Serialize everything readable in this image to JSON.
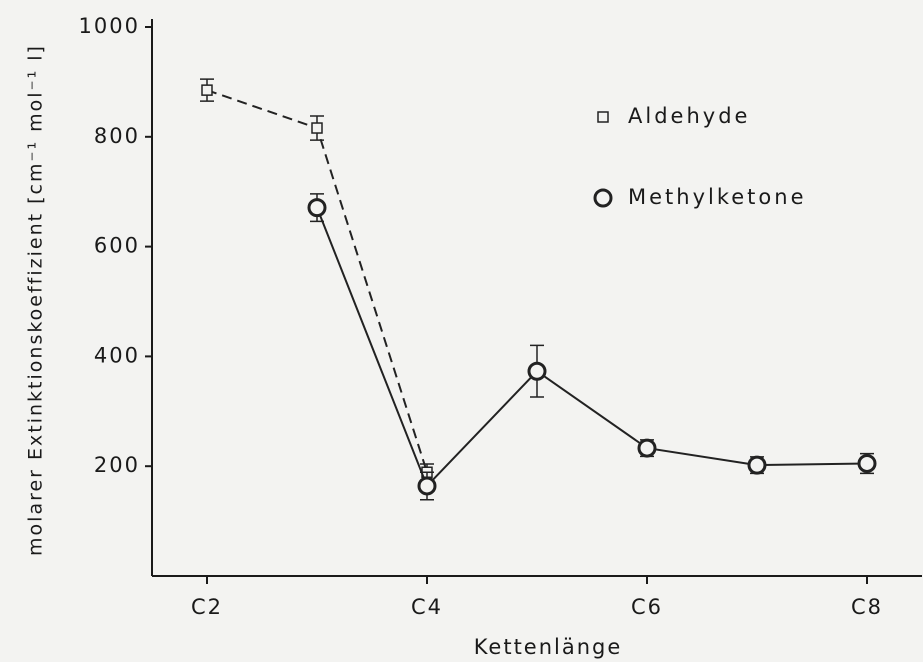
{
  "chart_data": {
    "type": "line",
    "xlabel": "Kettenlänge",
    "ylabel": "molarer Extinktionskoeffizient  [cm⁻¹ mol⁻¹ l]",
    "xlim": [
      1.5,
      8.5
    ],
    "ylim": [
      0,
      1000
    ],
    "xticks": [
      {
        "value": 2,
        "label": "C2"
      },
      {
        "value": 4,
        "label": "C4"
      },
      {
        "value": 6,
        "label": "C6"
      },
      {
        "value": 8,
        "label": "C8"
      }
    ],
    "yticks": [
      200,
      400,
      600,
      800,
      1000
    ],
    "grid": false,
    "series": [
      {
        "name": "Aldehyde",
        "color": "#222222",
        "linestyle": "dashed",
        "marker": "square",
        "x": [
          2,
          3,
          4
        ],
        "values": [
          885,
          816,
          189
        ],
        "errors": [
          20,
          22,
          15
        ]
      },
      {
        "name": "Methylketone",
        "color": "#222222",
        "linestyle": "solid",
        "marker": "circle",
        "x": [
          3,
          4,
          5,
          6,
          7,
          8
        ],
        "values": [
          671,
          164,
          373,
          233,
          202,
          205
        ],
        "errors": [
          25,
          25,
          47,
          15,
          15,
          18
        ]
      }
    ]
  }
}
